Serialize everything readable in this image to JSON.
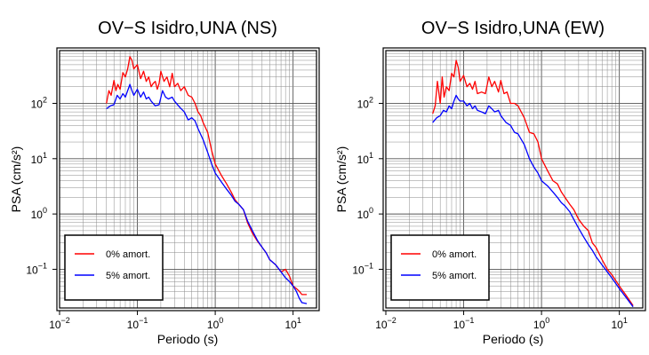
{
  "chart_data": [
    {
      "type": "line",
      "title": "OV−S Isidro,UNA (NS)",
      "xlabel": "Periodo (s)",
      "ylabel": "PSA (cm/s²)",
      "xscale": "log",
      "yscale": "log",
      "xlim": [
        0.01,
        20
      ],
      "ylim": [
        0.02,
        900
      ],
      "grid": true,
      "legend_position": "bottom-left",
      "x_tick_labels": [
        {
          "value": 0.01,
          "base": "10",
          "exp": "−2"
        },
        {
          "value": 0.1,
          "base": "10",
          "exp": "−1"
        },
        {
          "value": 1,
          "base": "10",
          "exp": "0"
        },
        {
          "value": 10,
          "base": "10",
          "exp": "1"
        }
      ],
      "y_tick_labels": [
        {
          "value": 0.1,
          "base": "10",
          "exp": "−1"
        },
        {
          "value": 1,
          "base": "10",
          "exp": "0"
        },
        {
          "value": 10,
          "base": "10",
          "exp": "1"
        },
        {
          "value": 100,
          "base": "10",
          "exp": "2"
        }
      ],
      "series": [
        {
          "name": "0% amort.",
          "color": "#ff0000",
          "x": [
            0.04,
            0.043,
            0.046,
            0.05,
            0.053,
            0.056,
            0.06,
            0.065,
            0.07,
            0.075,
            0.08,
            0.085,
            0.09,
            0.1,
            0.11,
            0.12,
            0.13,
            0.14,
            0.15,
            0.16,
            0.17,
            0.18,
            0.19,
            0.2,
            0.22,
            0.24,
            0.26,
            0.28,
            0.3,
            0.33,
            0.36,
            0.4,
            0.45,
            0.5,
            0.55,
            0.6,
            0.65,
            0.7,
            0.8,
            0.9,
            1.0,
            1.2,
            1.4,
            1.6,
            1.8,
            2.0,
            2.3,
            2.6,
            3.0,
            3.5,
            4.0,
            4.5,
            5.0,
            6.0,
            7.0,
            8.0,
            9.0,
            10.0,
            11.0,
            12.0,
            13.0,
            15.0
          ],
          "y": [
            100,
            170,
            140,
            260,
            170,
            220,
            180,
            360,
            300,
            420,
            700,
            600,
            420,
            500,
            280,
            380,
            250,
            300,
            200,
            230,
            250,
            180,
            230,
            380,
            250,
            300,
            200,
            350,
            200,
            230,
            170,
            200,
            140,
            130,
            100,
            70,
            60,
            45,
            30,
            14,
            8,
            5,
            3.5,
            2.5,
            1.8,
            1.5,
            1.2,
            0.7,
            0.45,
            0.32,
            0.25,
            0.2,
            0.15,
            0.12,
            0.09,
            0.1,
            0.075,
            0.05,
            0.045,
            0.04,
            0.035,
            0.035
          ]
        },
        {
          "name": "5% amort.",
          "color": "#0000ff",
          "x": [
            0.04,
            0.045,
            0.05,
            0.055,
            0.06,
            0.065,
            0.07,
            0.075,
            0.08,
            0.085,
            0.09,
            0.1,
            0.11,
            0.12,
            0.13,
            0.14,
            0.15,
            0.17,
            0.19,
            0.21,
            0.23,
            0.25,
            0.28,
            0.3,
            0.35,
            0.4,
            0.45,
            0.5,
            0.55,
            0.6,
            0.7,
            0.8,
            0.9,
            1.0,
            1.2,
            1.4,
            1.6,
            1.8,
            2.0,
            2.3,
            2.6,
            3.0,
            3.5,
            4.0,
            4.5,
            5.0,
            6.0,
            7.0,
            8.0,
            9.0,
            10.0,
            11.0,
            12.0,
            13.0,
            15.0
          ],
          "y": [
            80,
            90,
            95,
            140,
            120,
            150,
            130,
            170,
            220,
            170,
            140,
            180,
            130,
            160,
            120,
            130,
            110,
            90,
            95,
            170,
            130,
            120,
            130,
            110,
            85,
            70,
            50,
            55,
            48,
            35,
            22,
            13,
            8,
            5.5,
            3.8,
            2.8,
            2.2,
            1.7,
            1.5,
            1.2,
            0.75,
            0.5,
            0.33,
            0.25,
            0.2,
            0.15,
            0.12,
            0.09,
            0.07,
            0.06,
            0.05,
            0.04,
            0.03,
            0.025,
            0.024
          ]
        }
      ]
    },
    {
      "type": "line",
      "title": "OV−S Isidro,UNA (EW)",
      "xlabel": "Periodo (s)",
      "ylabel": "PSA (cm/s²)",
      "xscale": "log",
      "yscale": "log",
      "xlim": [
        0.01,
        20
      ],
      "ylim": [
        0.02,
        900
      ],
      "grid": true,
      "legend_position": "bottom-left",
      "x_tick_labels": [
        {
          "value": 0.01,
          "base": "10",
          "exp": "−2"
        },
        {
          "value": 0.1,
          "base": "10",
          "exp": "−1"
        },
        {
          "value": 1,
          "base": "10",
          "exp": "0"
        },
        {
          "value": 10,
          "base": "10",
          "exp": "1"
        }
      ],
      "y_tick_labels": [
        {
          "value": 0.1,
          "base": "10",
          "exp": "−1"
        },
        {
          "value": 1,
          "base": "10",
          "exp": "0"
        },
        {
          "value": 10,
          "base": "10",
          "exp": "1"
        },
        {
          "value": 100,
          "base": "10",
          "exp": "2"
        }
      ],
      "series": [
        {
          "name": "0% amort.",
          "color": "#ff0000",
          "x": [
            0.04,
            0.043,
            0.046,
            0.05,
            0.053,
            0.056,
            0.06,
            0.065,
            0.07,
            0.075,
            0.08,
            0.085,
            0.09,
            0.1,
            0.11,
            0.12,
            0.13,
            0.14,
            0.15,
            0.17,
            0.19,
            0.21,
            0.23,
            0.25,
            0.28,
            0.3,
            0.33,
            0.36,
            0.4,
            0.45,
            0.5,
            0.6,
            0.7,
            0.8,
            0.9,
            1.0,
            1.2,
            1.4,
            1.6,
            1.8,
            2.0,
            2.3,
            2.6,
            3.0,
            3.5,
            4.0,
            4.5,
            5.0,
            6.0,
            7.0,
            8.0,
            10.0,
            12.0,
            15.0
          ],
          "y": [
            65,
            90,
            250,
            100,
            300,
            130,
            200,
            170,
            350,
            300,
            600,
            450,
            250,
            320,
            200,
            230,
            180,
            250,
            150,
            160,
            150,
            300,
            200,
            250,
            160,
            260,
            150,
            160,
            100,
            100,
            90,
            55,
            30,
            28,
            20,
            10,
            6,
            4,
            3.5,
            2.5,
            2,
            1.5,
            1.2,
            0.8,
            0.6,
            0.5,
            0.3,
            0.25,
            0.15,
            0.1,
            0.08,
            0.05,
            0.035,
            0.022
          ]
        },
        {
          "name": "5% amort.",
          "color": "#0000ff",
          "x": [
            0.04,
            0.045,
            0.05,
            0.055,
            0.06,
            0.065,
            0.07,
            0.075,
            0.08,
            0.085,
            0.09,
            0.1,
            0.11,
            0.12,
            0.13,
            0.14,
            0.15,
            0.17,
            0.19,
            0.21,
            0.23,
            0.25,
            0.28,
            0.3,
            0.35,
            0.4,
            0.45,
            0.5,
            0.6,
            0.7,
            0.8,
            0.9,
            1.0,
            1.2,
            1.4,
            1.6,
            1.8,
            2.0,
            2.3,
            2.6,
            3.0,
            3.5,
            4.0,
            4.5,
            5.0,
            6.0,
            7.0,
            8.0,
            10.0,
            12.0,
            15.0
          ],
          "y": [
            45,
            55,
            60,
            75,
            70,
            90,
            80,
            110,
            140,
            120,
            110,
            110,
            90,
            100,
            80,
            90,
            75,
            70,
            65,
            90,
            80,
            70,
            75,
            60,
            45,
            40,
            30,
            28,
            18,
            10,
            7,
            5.5,
            4,
            3.2,
            2.5,
            2,
            1.6,
            1.4,
            1.1,
            0.8,
            0.55,
            0.38,
            0.28,
            0.22,
            0.17,
            0.12,
            0.09,
            0.07,
            0.045,
            0.032,
            0.021
          ]
        }
      ]
    }
  ]
}
